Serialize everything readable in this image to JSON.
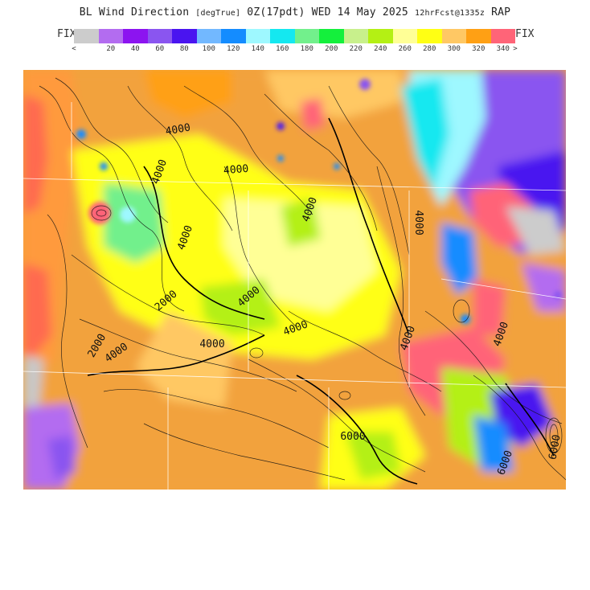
{
  "header": {
    "title_main": "BL Wind Direction",
    "unit": "[degTrue]",
    "valid": "0Z(17pdt) WED 14 May 2025",
    "forecast": "12hrFcst@1335z",
    "model": "RAP"
  },
  "legend": {
    "fix_left": "FIX",
    "fix_right": "FIX",
    "less_than": "<",
    "greater_than": ">",
    "tick_labels": [
      "20",
      "40",
      "60",
      "80",
      "100",
      "120",
      "140",
      "160",
      "180",
      "200",
      "220",
      "240",
      "260",
      "280",
      "300",
      "320",
      "340"
    ],
    "colors": [
      "#cccccc",
      "#b36cf0",
      "#8c14f0",
      "#8a55f0",
      "#4a14f0",
      "#72b8ff",
      "#148cff",
      "#9ef8ff",
      "#14e8f0",
      "#72f08c",
      "#14f03c",
      "#c8f08c",
      "#b4f014",
      "#ffff96",
      "#ffff14",
      "#ffc864",
      "#ffa014",
      "#ff6478"
    ]
  },
  "map": {
    "contour_labels": [
      "4000",
      "4000",
      "4000",
      "4000",
      "4000",
      "4000",
      "4000",
      "4000",
      "4000",
      "4000",
      "4000",
      "4000",
      "6000",
      "6000",
      "2000",
      "2000",
      "6000"
    ]
  }
}
